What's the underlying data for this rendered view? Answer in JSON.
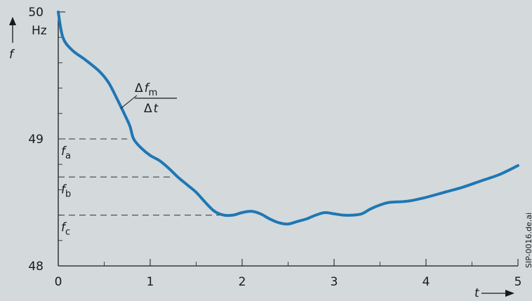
{
  "chart_data": {
    "type": "line",
    "xlabel": "t",
    "ylabel": "f",
    "yunit": "Hz",
    "xlim": [
      0,
      5
    ],
    "ylim": [
      48,
      50
    ],
    "x_ticks": [
      "0",
      "1",
      "2",
      "3",
      "4",
      "5"
    ],
    "y_ticks": [
      "48",
      "49",
      "50"
    ],
    "series_color": "#1f77b4",
    "series": [
      {
        "x": [
          0.0,
          0.05,
          0.15,
          0.3,
          0.45,
          0.55,
          0.65,
          0.73,
          0.78,
          0.82,
          0.9,
          1.0,
          1.1,
          1.2,
          1.3,
          1.4,
          1.5,
          1.6,
          1.7,
          1.8,
          1.9,
          2.0,
          2.1,
          2.2,
          2.3,
          2.4,
          2.5,
          2.6,
          2.7,
          2.8,
          2.9,
          3.0,
          3.1,
          3.2,
          3.3,
          3.4,
          3.5,
          3.6,
          3.8,
          4.0,
          4.2,
          4.4,
          4.6,
          4.8,
          5.0
        ],
        "y": [
          50.0,
          49.8,
          49.7,
          49.62,
          49.53,
          49.44,
          49.3,
          49.18,
          49.1,
          49.0,
          48.93,
          48.87,
          48.83,
          48.77,
          48.7,
          48.64,
          48.58,
          48.5,
          48.43,
          48.4,
          48.4,
          48.42,
          48.43,
          48.41,
          48.37,
          48.34,
          48.33,
          48.35,
          48.37,
          48.4,
          48.42,
          48.41,
          48.4,
          48.4,
          48.41,
          48.45,
          48.48,
          48.5,
          48.51,
          48.54,
          48.58,
          48.62,
          48.67,
          48.72,
          48.79
        ]
      }
    ],
    "reference_lines": [
      {
        "label": "f",
        "subscript": "a",
        "y": 49.0,
        "x_end": 0.75
      },
      {
        "label": "f",
        "subscript": "b",
        "y": 48.7,
        "x_end": 1.22
      },
      {
        "label": "f",
        "subscript": "c",
        "y": 48.4,
        "x_end": 1.78
      }
    ],
    "annotation": {
      "numerator_delta": "Δ",
      "numerator_var": "f",
      "numerator_sub": "m",
      "denominator_delta": "Δ",
      "denominator_var": "t",
      "anchor_x": 0.68,
      "anchor_y": 49.24
    },
    "side_code": "SIP-0016.de.ai"
  }
}
